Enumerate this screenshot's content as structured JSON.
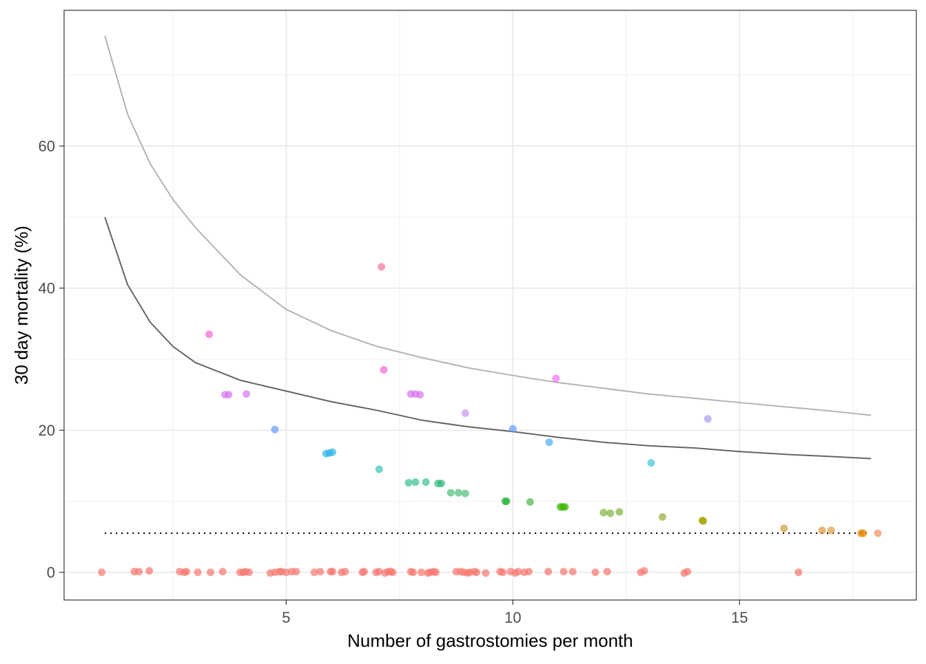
{
  "chart_data": {
    "type": "scatter",
    "title": "",
    "xlabel": "Number of gastrostomies per month",
    "ylabel": "30 day mortality (%)",
    "xlim": [
      0.1,
      18.9
    ],
    "ylim": [
      -3.9,
      79.1
    ],
    "x_ticks": [
      5,
      10,
      15
    ],
    "y_ticks": [
      0,
      20,
      40,
      60
    ],
    "x_minor": [
      2.5,
      7.5,
      12.5,
      17.5
    ],
    "y_minor": [
      10,
      30,
      50,
      70
    ],
    "grid": true,
    "legend": "none",
    "colors": {
      "panel_border": "#333333",
      "grid_major": "#ebebeb",
      "grid_minor": "#f2f2f2",
      "upper_limit": "#b3b3b3",
      "lower_limit": "#636363",
      "reference_line": "#000000"
    },
    "lines": [
      {
        "role": "upper control limit",
        "color": "#b3b3b3",
        "x": [
          1.0,
          1.5,
          2.0,
          2.5,
          3.0,
          4.0,
          5.0,
          6.0,
          7.0,
          8.0,
          9.0,
          10.0,
          11.0,
          12.0,
          13.0,
          14.0,
          15.0,
          16.0,
          17.0,
          17.9
        ],
        "y": [
          75.5,
          64.5,
          57.5,
          52.5,
          48.5,
          41.8,
          37.0,
          34.0,
          31.8,
          30.2,
          28.8,
          27.7,
          26.7,
          25.9,
          25.1,
          24.5,
          23.9,
          23.3,
          22.7,
          22.1
        ]
      },
      {
        "role": "lower control limit",
        "color": "#636363",
        "x": [
          1.0,
          1.5,
          2.0,
          2.5,
          3.0,
          4.0,
          5.0,
          6.0,
          7.0,
          8.0,
          9.0,
          10.0,
          11.0,
          12.0,
          13.0,
          14.0,
          15.0,
          16.0,
          17.0,
          17.9
        ],
        "y": [
          50.0,
          40.5,
          35.2,
          31.8,
          29.5,
          27.0,
          25.5,
          24.0,
          22.8,
          21.4,
          20.5,
          19.8,
          19.0,
          18.3,
          17.8,
          17.5,
          17.0,
          16.6,
          16.3,
          16.0
        ]
      },
      {
        "role": "overall mortality",
        "style": "dotted",
        "color": "#000000",
        "x": [
          1.0,
          17.8
        ],
        "y": [
          5.5,
          5.5
        ]
      }
    ],
    "points": [
      {
        "x": 7.1,
        "y": 43.0,
        "color": "#f7729b"
      },
      {
        "x": 3.3,
        "y": 33.5,
        "color": "#f564d0"
      },
      {
        "x": 7.15,
        "y": 28.5,
        "color": "#f564d0"
      },
      {
        "x": 10.95,
        "y": 27.3,
        "color": "#eb6ef0"
      },
      {
        "x": 3.65,
        "y": 25.0,
        "color": "#d674f0"
      },
      {
        "x": 3.73,
        "y": 25.0,
        "color": "#d674f0"
      },
      {
        "x": 4.12,
        "y": 25.1,
        "color": "#d674f0"
      },
      {
        "x": 7.75,
        "y": 25.1,
        "color": "#d674f0"
      },
      {
        "x": 7.85,
        "y": 25.1,
        "color": "#d674f0"
      },
      {
        "x": 7.95,
        "y": 25.0,
        "color": "#d674f0"
      },
      {
        "x": 8.95,
        "y": 22.4,
        "color": "#c792f2"
      },
      {
        "x": 14.3,
        "y": 21.6,
        "color": "#a89af2"
      },
      {
        "x": 4.75,
        "y": 20.1,
        "color": "#619cff"
      },
      {
        "x": 10.0,
        "y": 20.2,
        "color": "#619cff"
      },
      {
        "x": 10.8,
        "y": 18.3,
        "color": "#4aaff2"
      },
      {
        "x": 5.88,
        "y": 16.7,
        "color": "#2cb4e6"
      },
      {
        "x": 5.95,
        "y": 16.8,
        "color": "#2cb4e6"
      },
      {
        "x": 6.02,
        "y": 16.9,
        "color": "#2cb4e6"
      },
      {
        "x": 13.05,
        "y": 15.4,
        "color": "#3ec6d6"
      },
      {
        "x": 7.05,
        "y": 14.5,
        "color": "#3cc4b0"
      },
      {
        "x": 7.7,
        "y": 12.6,
        "color": "#37c08f"
      },
      {
        "x": 7.85,
        "y": 12.7,
        "color": "#37c08f"
      },
      {
        "x": 8.08,
        "y": 12.7,
        "color": "#37c08f"
      },
      {
        "x": 8.35,
        "y": 12.5,
        "color": "#2bb97a"
      },
      {
        "x": 8.42,
        "y": 12.5,
        "color": "#2bb97a"
      },
      {
        "x": 8.63,
        "y": 11.2,
        "color": "#4dbd78"
      },
      {
        "x": 8.8,
        "y": 11.2,
        "color": "#4dbd78"
      },
      {
        "x": 8.95,
        "y": 11.1,
        "color": "#4dbd78"
      },
      {
        "x": 9.83,
        "y": 10.0,
        "color": "#2ab33a"
      },
      {
        "x": 9.86,
        "y": 10.0,
        "color": "#2ab33a"
      },
      {
        "x": 10.38,
        "y": 9.9,
        "color": "#48b843"
      },
      {
        "x": 11.05,
        "y": 9.2,
        "color": "#39b600"
      },
      {
        "x": 11.1,
        "y": 9.2,
        "color": "#39b600"
      },
      {
        "x": 11.15,
        "y": 9.2,
        "color": "#39b600"
      },
      {
        "x": 12.0,
        "y": 8.4,
        "color": "#7fb43a"
      },
      {
        "x": 12.15,
        "y": 8.3,
        "color": "#7fb43a"
      },
      {
        "x": 12.35,
        "y": 8.5,
        "color": "#7fb43a"
      },
      {
        "x": 13.3,
        "y": 7.8,
        "color": "#98a838"
      },
      {
        "x": 14.18,
        "y": 7.3,
        "color": "#a3a500"
      },
      {
        "x": 14.2,
        "y": 7.2,
        "color": "#a3a500"
      },
      {
        "x": 15.98,
        "y": 6.2,
        "color": "#c9a038"
      },
      {
        "x": 16.82,
        "y": 5.9,
        "color": "#e0993e"
      },
      {
        "x": 17.02,
        "y": 5.9,
        "color": "#e0993e"
      },
      {
        "x": 17.68,
        "y": 5.5,
        "color": "#e38900"
      },
      {
        "x": 17.73,
        "y": 5.5,
        "color": "#e38900"
      },
      {
        "x": 18.05,
        "y": 5.5,
        "color": "#ef8e62"
      },
      {
        "x": 0.93,
        "y": 0,
        "color": "#f8766d"
      },
      {
        "x": 1.65,
        "y": 0.1,
        "color": "#f8766d"
      },
      {
        "x": 1.75,
        "y": 0.1,
        "color": "#f8766d"
      },
      {
        "x": 1.98,
        "y": 0.2,
        "color": "#f8766d"
      },
      {
        "x": 2.65,
        "y": 0.1,
        "color": "#f8766d"
      },
      {
        "x": 2.75,
        "y": 0,
        "color": "#f8766d"
      },
      {
        "x": 2.8,
        "y": 0.1,
        "color": "#f8766d"
      },
      {
        "x": 3.05,
        "y": 0,
        "color": "#f8766d"
      },
      {
        "x": 3.33,
        "y": 0,
        "color": "#f8766d"
      },
      {
        "x": 3.6,
        "y": 0.1,
        "color": "#f8766d"
      },
      {
        "x": 3.98,
        "y": 0,
        "color": "#f8766d"
      },
      {
        "x": 4.05,
        "y": 0,
        "color": "#f8766d"
      },
      {
        "x": 4.1,
        "y": 0.1,
        "color": "#f8766d"
      },
      {
        "x": 4.18,
        "y": 0,
        "color": "#f8766d"
      },
      {
        "x": 4.65,
        "y": -0.1,
        "color": "#f8766d"
      },
      {
        "x": 4.75,
        "y": 0,
        "color": "#f8766d"
      },
      {
        "x": 4.85,
        "y": 0.1,
        "color": "#f8766d"
      },
      {
        "x": 4.9,
        "y": 0.1,
        "color": "#f8766d"
      },
      {
        "x": 5.0,
        "y": 0,
        "color": "#f8766d"
      },
      {
        "x": 5.12,
        "y": 0.1,
        "color": "#f8766d"
      },
      {
        "x": 5.22,
        "y": 0.1,
        "color": "#f8766d"
      },
      {
        "x": 5.62,
        "y": 0,
        "color": "#f8766d"
      },
      {
        "x": 5.75,
        "y": 0.1,
        "color": "#f8766d"
      },
      {
        "x": 5.98,
        "y": 0.1,
        "color": "#f8766d"
      },
      {
        "x": 6.02,
        "y": 0.1,
        "color": "#f8766d"
      },
      {
        "x": 6.22,
        "y": 0,
        "color": "#f8766d"
      },
      {
        "x": 6.3,
        "y": 0.1,
        "color": "#f8766d"
      },
      {
        "x": 6.68,
        "y": 0,
        "color": "#f8766d"
      },
      {
        "x": 6.72,
        "y": 0.1,
        "color": "#f8766d"
      },
      {
        "x": 6.98,
        "y": 0,
        "color": "#f8766d"
      },
      {
        "x": 7.05,
        "y": 0.1,
        "color": "#f8766d"
      },
      {
        "x": 7.18,
        "y": -0.1,
        "color": "#f8766d"
      },
      {
        "x": 7.25,
        "y": 0.1,
        "color": "#f8766d"
      },
      {
        "x": 7.3,
        "y": 0.1,
        "color": "#f8766d"
      },
      {
        "x": 7.35,
        "y": 0,
        "color": "#f8766d"
      },
      {
        "x": 7.75,
        "y": 0.1,
        "color": "#f8766d"
      },
      {
        "x": 7.8,
        "y": 0,
        "color": "#f8766d"
      },
      {
        "x": 7.98,
        "y": 0,
        "color": "#f8766d"
      },
      {
        "x": 8.12,
        "y": -0.1,
        "color": "#f8766d"
      },
      {
        "x": 8.18,
        "y": 0,
        "color": "#f8766d"
      },
      {
        "x": 8.25,
        "y": 0.1,
        "color": "#f8766d"
      },
      {
        "x": 8.3,
        "y": 0,
        "color": "#f8766d"
      },
      {
        "x": 8.75,
        "y": 0.1,
        "color": "#f8766d"
      },
      {
        "x": 8.85,
        "y": 0.1,
        "color": "#f8766d"
      },
      {
        "x": 8.92,
        "y": 0,
        "color": "#f8766d"
      },
      {
        "x": 9.0,
        "y": -0.1,
        "color": "#f8766d"
      },
      {
        "x": 9.05,
        "y": 0,
        "color": "#f8766d"
      },
      {
        "x": 9.15,
        "y": 0.1,
        "color": "#f8766d"
      },
      {
        "x": 9.2,
        "y": 0,
        "color": "#f8766d"
      },
      {
        "x": 9.4,
        "y": -0.1,
        "color": "#f8766d"
      },
      {
        "x": 9.72,
        "y": 0.1,
        "color": "#f8766d"
      },
      {
        "x": 9.78,
        "y": 0,
        "color": "#f8766d"
      },
      {
        "x": 9.95,
        "y": 0.1,
        "color": "#f8766d"
      },
      {
        "x": 10.05,
        "y": -0.1,
        "color": "#f8766d"
      },
      {
        "x": 10.12,
        "y": 0.1,
        "color": "#f8766d"
      },
      {
        "x": 10.25,
        "y": 0,
        "color": "#f8766d"
      },
      {
        "x": 10.35,
        "y": 0.1,
        "color": "#f8766d"
      },
      {
        "x": 10.78,
        "y": 0.1,
        "color": "#f8766d"
      },
      {
        "x": 11.12,
        "y": 0.1,
        "color": "#f8766d"
      },
      {
        "x": 11.32,
        "y": 0.1,
        "color": "#f8766d"
      },
      {
        "x": 11.82,
        "y": 0,
        "color": "#f8766d"
      },
      {
        "x": 12.08,
        "y": 0.1,
        "color": "#f8766d"
      },
      {
        "x": 12.82,
        "y": 0,
        "color": "#f8766d"
      },
      {
        "x": 12.9,
        "y": 0.2,
        "color": "#f8766d"
      },
      {
        "x": 13.78,
        "y": -0.1,
        "color": "#f8766d"
      },
      {
        "x": 13.85,
        "y": 0.1,
        "color": "#f8766d"
      },
      {
        "x": 16.3,
        "y": 0,
        "color": "#f8766d"
      }
    ]
  }
}
